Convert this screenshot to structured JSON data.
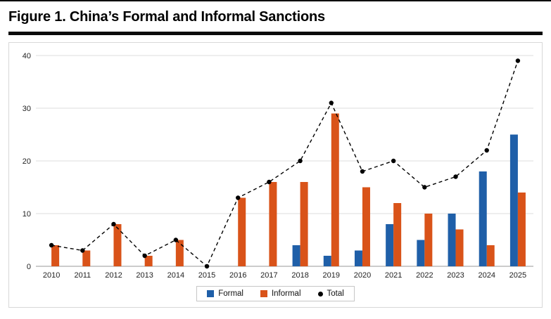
{
  "figure": {
    "title": "Figure 1. China’s Formal and Informal Sanctions"
  },
  "chart_data": {
    "type": "bar",
    "title": "Figure 1. China’s Formal and Informal Sanctions",
    "categories": [
      "2010",
      "2011",
      "2012",
      "2013",
      "2014",
      "2015",
      "2016",
      "2017",
      "2018",
      "2019",
      "2020",
      "2021",
      "2022",
      "2023",
      "2024",
      "2025"
    ],
    "series": [
      {
        "name": "Formal",
        "type": "bar",
        "color": "#1f5fa8",
        "values": [
          0,
          0,
          0,
          0,
          0,
          0,
          0,
          0,
          4,
          2,
          3,
          8,
          5,
          10,
          18,
          25
        ]
      },
      {
        "name": "Informal",
        "type": "bar",
        "color": "#d95319",
        "values": [
          4,
          3,
          8,
          2,
          5,
          0,
          13,
          16,
          16,
          29,
          15,
          12,
          10,
          7,
          4,
          14
        ]
      },
      {
        "name": "Total",
        "type": "line",
        "color": "#000000",
        "line_style": "dashed",
        "marker": "circle",
        "values": [
          4,
          3,
          8,
          2,
          5,
          0,
          13,
          16,
          20,
          31,
          18,
          20,
          15,
          17,
          22,
          39
        ]
      }
    ],
    "xlabel": "",
    "ylabel": "",
    "ylim": [
      0,
      40
    ],
    "yticks": [
      0,
      10,
      20,
      30,
      40
    ],
    "grid": true,
    "legend_position": "bottom"
  }
}
